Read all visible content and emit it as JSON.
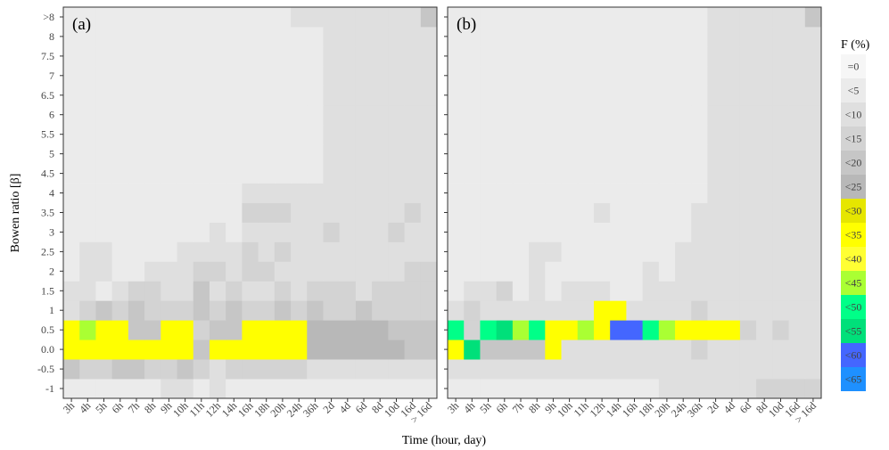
{
  "chart_data": {
    "type": "heatmap",
    "xlabel": "Time (hour, day)",
    "ylabel": "Bowen ratio [β]",
    "x_categories": [
      "3h",
      "4h",
      "5h",
      "6h",
      "7h",
      "8h",
      "9h",
      "10h",
      "11h",
      "12h",
      "14h",
      "16h",
      "18h",
      "20h",
      "24h",
      "36h",
      "2d",
      "4d",
      "6d",
      "8d",
      "10d",
      "16d",
      "> 16d"
    ],
    "x_label_colors": [
      "#555555",
      "#555555",
      "#555555",
      "#555555",
      "#555555",
      "#555555",
      "#555555",
      "#555555",
      "#555555",
      "#555555",
      "#555555",
      "#555555",
      "#555555",
      "#555555",
      "#555555",
      "#ff0000",
      "#ff0000",
      "#ff0000",
      "#ff0000",
      "#ff0000",
      "#ff0000",
      "#ff0000",
      "#ff0000"
    ],
    "y_categories": [
      "-1",
      "-0.5",
      "0.0",
      "0.5",
      "1",
      "1.5",
      "2",
      "2.5",
      "3",
      "3.5",
      "4",
      "4.5",
      "5",
      "5.5",
      "6",
      "6.5",
      "7",
      "7.5",
      "8",
      ">8"
    ],
    "legend": {
      "title": "F (%)",
      "labels": [
        "=0",
        "<5",
        "<10",
        "<15",
        "<20",
        "<25",
        "<30",
        "<35",
        "<40",
        "<45",
        "<50",
        "<55",
        "<60",
        "<65"
      ],
      "colors": [
        "#f6f6f6",
        "#ebebeb",
        "#dfdfdf",
        "#d3d3d3",
        "#c6c6c6",
        "#b8b8b8",
        "#e6e600",
        "#ffff00",
        "#ffff33",
        "#aaff33",
        "#00ff88",
        "#00e07a",
        "#4466ff",
        "#1e90ff"
      ],
      "placement": "right"
    },
    "panels": [
      {
        "label": "(a)",
        "rows_bottom_to_top": [
          [
            1,
            1,
            1,
            1,
            1,
            1,
            2,
            2,
            1,
            2,
            1,
            1,
            1,
            1,
            1,
            1,
            1,
            1,
            1,
            1,
            1,
            1,
            1
          ],
          [
            4,
            3,
            3,
            4,
            4,
            3,
            3,
            4,
            3,
            2,
            3,
            3,
            3,
            3,
            3,
            2,
            2,
            2,
            2,
            2,
            2,
            2,
            2
          ],
          [
            7,
            7,
            7,
            7,
            7,
            7,
            7,
            7,
            4,
            7,
            7,
            7,
            7,
            7,
            7,
            5,
            5,
            5,
            5,
            5,
            5,
            4,
            4
          ],
          [
            7,
            9,
            7,
            7,
            4,
            4,
            7,
            7,
            3,
            4,
            4,
            7,
            7,
            7,
            7,
            5,
            5,
            5,
            5,
            5,
            4,
            4,
            4
          ],
          [
            2,
            3,
            4,
            3,
            4,
            3,
            3,
            3,
            4,
            3,
            4,
            3,
            3,
            4,
            3,
            4,
            3,
            3,
            4,
            3,
            3,
            3,
            3
          ],
          [
            2,
            2,
            1,
            2,
            3,
            3,
            2,
            2,
            4,
            2,
            3,
            2,
            2,
            3,
            2,
            3,
            3,
            3,
            2,
            3,
            3,
            3,
            3
          ],
          [
            1,
            2,
            2,
            1,
            1,
            2,
            2,
            2,
            3,
            3,
            2,
            3,
            3,
            2,
            2,
            2,
            2,
            2,
            2,
            2,
            2,
            3,
            3
          ],
          [
            1,
            2,
            2,
            1,
            1,
            1,
            1,
            2,
            2,
            2,
            2,
            3,
            2,
            3,
            2,
            2,
            2,
            2,
            2,
            2,
            2,
            2,
            2
          ],
          [
            1,
            1,
            1,
            1,
            1,
            1,
            1,
            1,
            1,
            2,
            1,
            2,
            2,
            2,
            2,
            2,
            3,
            2,
            2,
            2,
            3,
            2,
            2
          ],
          [
            1,
            1,
            1,
            1,
            1,
            1,
            1,
            1,
            1,
            1,
            1,
            3,
            3,
            3,
            2,
            2,
            2,
            2,
            2,
            2,
            2,
            3,
            2
          ],
          [
            1,
            1,
            1,
            1,
            1,
            1,
            1,
            1,
            1,
            1,
            1,
            2,
            2,
            2,
            2,
            2,
            2,
            2,
            2,
            2,
            2,
            2,
            2
          ],
          [
            1,
            1,
            1,
            1,
            1,
            1,
            1,
            1,
            1,
            1,
            1,
            1,
            1,
            1,
            1,
            1,
            2,
            2,
            2,
            2,
            2,
            2,
            2
          ],
          [
            1,
            1,
            1,
            1,
            1,
            1,
            1,
            1,
            1,
            1,
            1,
            1,
            1,
            1,
            1,
            1,
            2,
            2,
            2,
            2,
            2,
            2,
            2
          ],
          [
            1,
            1,
            1,
            1,
            1,
            1,
            1,
            1,
            1,
            1,
            1,
            1,
            1,
            1,
            1,
            1,
            2,
            2,
            2,
            2,
            2,
            2,
            2
          ],
          [
            1,
            1,
            1,
            1,
            1,
            1,
            1,
            1,
            1,
            1,
            1,
            1,
            1,
            1,
            1,
            1,
            2,
            2,
            2,
            2,
            2,
            2,
            2
          ],
          [
            1,
            1,
            1,
            1,
            1,
            1,
            1,
            1,
            1,
            1,
            1,
            1,
            1,
            1,
            1,
            1,
            2,
            2,
            2,
            2,
            2,
            2,
            2
          ],
          [
            1,
            1,
            1,
            1,
            1,
            1,
            1,
            1,
            1,
            1,
            1,
            1,
            1,
            1,
            1,
            1,
            2,
            2,
            2,
            2,
            2,
            2,
            2
          ],
          [
            1,
            1,
            1,
            1,
            1,
            1,
            1,
            1,
            1,
            1,
            1,
            1,
            1,
            1,
            1,
            1,
            2,
            2,
            2,
            2,
            2,
            2,
            2
          ],
          [
            1,
            1,
            1,
            1,
            1,
            1,
            1,
            1,
            1,
            1,
            1,
            1,
            1,
            1,
            1,
            1,
            2,
            2,
            2,
            2,
            2,
            2,
            2
          ],
          [
            1,
            1,
            1,
            1,
            1,
            1,
            1,
            1,
            1,
            1,
            1,
            1,
            1,
            1,
            2,
            2,
            2,
            2,
            2,
            2,
            2,
            2,
            4
          ]
        ]
      },
      {
        "label": "(b)",
        "rows_bottom_to_top": [
          [
            1,
            1,
            1,
            1,
            1,
            1,
            1,
            1,
            1,
            1,
            1,
            1,
            1,
            2,
            2,
            2,
            2,
            2,
            2,
            3,
            3,
            3,
            3
          ],
          [
            2,
            2,
            2,
            2,
            2,
            2,
            2,
            2,
            2,
            2,
            2,
            2,
            2,
            2,
            2,
            2,
            2,
            2,
            2,
            2,
            2,
            2,
            2
          ],
          [
            7,
            11,
            4,
            4,
            4,
            4,
            7,
            2,
            2,
            2,
            2,
            2,
            2,
            2,
            2,
            3,
            2,
            2,
            2,
            2,
            2,
            2,
            2
          ],
          [
            10,
            3,
            10,
            11,
            9,
            10,
            7,
            7,
            9,
            7,
            12,
            12,
            10,
            9,
            7,
            7,
            7,
            7,
            3,
            2,
            3,
            2,
            2
          ],
          [
            2,
            3,
            2,
            2,
            2,
            2,
            2,
            2,
            2,
            7,
            7,
            2,
            2,
            2,
            2,
            3,
            2,
            2,
            2,
            2,
            2,
            2,
            2
          ],
          [
            1,
            2,
            2,
            3,
            1,
            2,
            1,
            2,
            2,
            2,
            1,
            1,
            2,
            2,
            2,
            2,
            2,
            2,
            2,
            2,
            2,
            2,
            2
          ],
          [
            1,
            1,
            1,
            1,
            1,
            2,
            1,
            1,
            1,
            1,
            1,
            1,
            2,
            1,
            2,
            2,
            2,
            2,
            2,
            2,
            2,
            2,
            2
          ],
          [
            1,
            1,
            1,
            1,
            1,
            2,
            2,
            1,
            1,
            1,
            1,
            1,
            1,
            1,
            2,
            2,
            2,
            2,
            2,
            2,
            2,
            2,
            2
          ],
          [
            1,
            1,
            1,
            1,
            1,
            1,
            1,
            1,
            1,
            1,
            1,
            1,
            1,
            1,
            1,
            2,
            2,
            2,
            2,
            2,
            2,
            2,
            2
          ],
          [
            1,
            1,
            1,
            1,
            1,
            1,
            1,
            1,
            1,
            2,
            1,
            1,
            1,
            1,
            1,
            2,
            2,
            2,
            2,
            2,
            2,
            2,
            2
          ],
          [
            1,
            1,
            1,
            1,
            1,
            1,
            1,
            1,
            1,
            1,
            1,
            1,
            1,
            1,
            1,
            1,
            2,
            2,
            2,
            2,
            2,
            2,
            2
          ],
          [
            1,
            1,
            1,
            1,
            1,
            1,
            1,
            1,
            1,
            1,
            1,
            1,
            1,
            1,
            1,
            1,
            2,
            2,
            2,
            2,
            2,
            2,
            2
          ],
          [
            1,
            1,
            1,
            1,
            1,
            1,
            1,
            1,
            1,
            1,
            1,
            1,
            1,
            1,
            1,
            1,
            2,
            2,
            2,
            2,
            2,
            2,
            2
          ],
          [
            1,
            1,
            1,
            1,
            1,
            1,
            1,
            1,
            1,
            1,
            1,
            1,
            1,
            1,
            1,
            1,
            2,
            2,
            2,
            2,
            2,
            2,
            2
          ],
          [
            1,
            1,
            1,
            1,
            1,
            1,
            1,
            1,
            1,
            1,
            1,
            1,
            1,
            1,
            1,
            1,
            2,
            2,
            2,
            2,
            2,
            2,
            2
          ],
          [
            1,
            1,
            1,
            1,
            1,
            1,
            1,
            1,
            1,
            1,
            1,
            1,
            1,
            1,
            1,
            1,
            2,
            2,
            2,
            2,
            2,
            2,
            2
          ],
          [
            1,
            1,
            1,
            1,
            1,
            1,
            1,
            1,
            1,
            1,
            1,
            1,
            1,
            1,
            1,
            1,
            2,
            2,
            2,
            2,
            2,
            2,
            2
          ],
          [
            1,
            1,
            1,
            1,
            1,
            1,
            1,
            1,
            1,
            1,
            1,
            1,
            1,
            1,
            1,
            1,
            2,
            2,
            2,
            2,
            2,
            2,
            2
          ],
          [
            1,
            1,
            1,
            1,
            1,
            1,
            1,
            1,
            1,
            1,
            1,
            1,
            1,
            1,
            1,
            1,
            2,
            2,
            2,
            2,
            2,
            2,
            2
          ],
          [
            1,
            1,
            1,
            1,
            1,
            1,
            1,
            1,
            1,
            1,
            1,
            1,
            1,
            1,
            1,
            1,
            2,
            2,
            2,
            2,
            2,
            2,
            4
          ]
        ]
      }
    ]
  }
}
